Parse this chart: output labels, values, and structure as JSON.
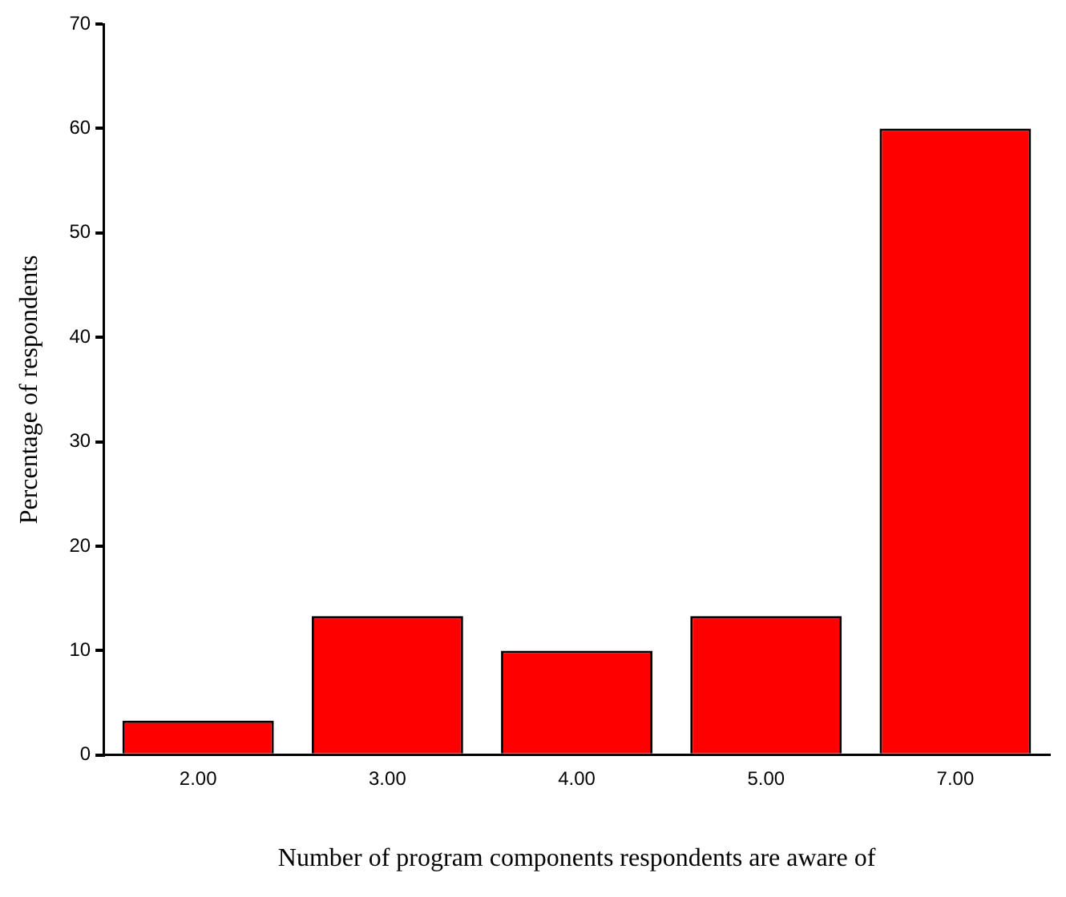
{
  "chart_data": {
    "type": "bar",
    "xlabel": "Number of program components respondents are aware of",
    "ylabel": "Percentage of respondents",
    "categories": [
      "2.00",
      "3.00",
      "4.00",
      "5.00",
      "7.00"
    ],
    "values": [
      3.3,
      13.3,
      10,
      13.3,
      60
    ],
    "color": "#ff0000",
    "ylim": [
      0,
      70
    ],
    "yticks": [
      0,
      10,
      20,
      30,
      40,
      50,
      60,
      70
    ],
    "grid": false,
    "legend": false
  }
}
